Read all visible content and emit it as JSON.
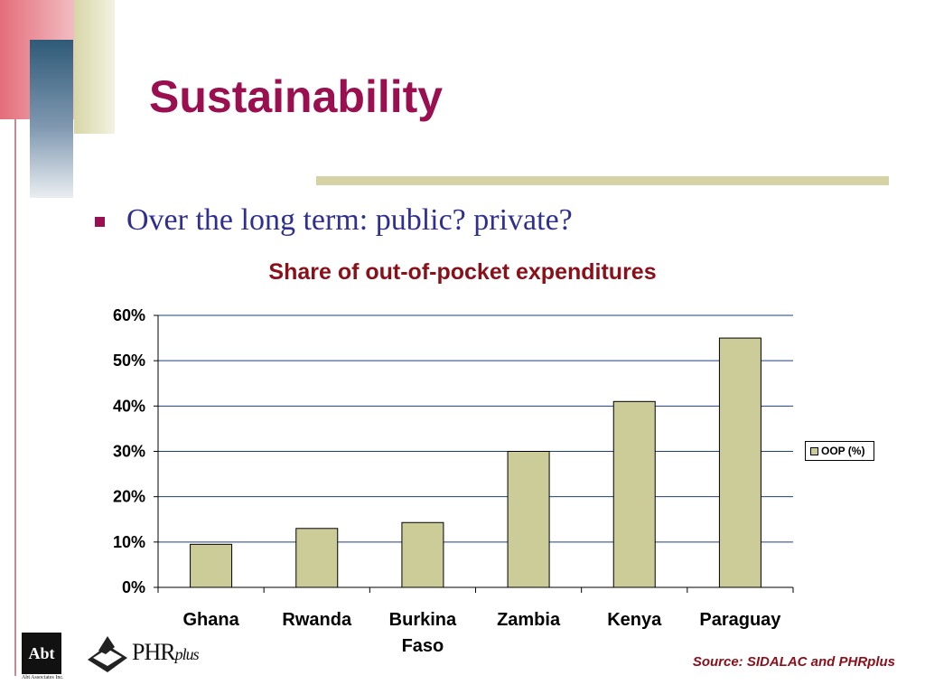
{
  "slide": {
    "title": "Sustainability",
    "bullet": "Over the long term: public? private?",
    "source": "Source: SIDALAC and PHRplus"
  },
  "logos": {
    "abt_mark": "Abt",
    "abt_caption": "Abt Associates Inc.",
    "phr_main": "PHR",
    "phr_suffix": "plus"
  },
  "colors": {
    "title": "#990f4f",
    "bar_fill": "#cccc99",
    "chart_title": "#8b0f18",
    "bullet_text": "#2f2f8f"
  },
  "chart_data": {
    "type": "bar",
    "title": "Share of out-of-pocket expenditures",
    "categories": [
      "Ghana",
      "Rwanda",
      "Burkina Faso",
      "Zambia",
      "Kenya",
      "Paraguay"
    ],
    "series": [
      {
        "name": "OOP (%)",
        "values": [
          9.5,
          13,
          14.3,
          30,
          41,
          55
        ]
      }
    ],
    "y_ticks": [
      "0%",
      "10%",
      "20%",
      "30%",
      "40%",
      "50%",
      "60%"
    ],
    "ylim": [
      0,
      60
    ],
    "grid": true,
    "legend": "right"
  }
}
